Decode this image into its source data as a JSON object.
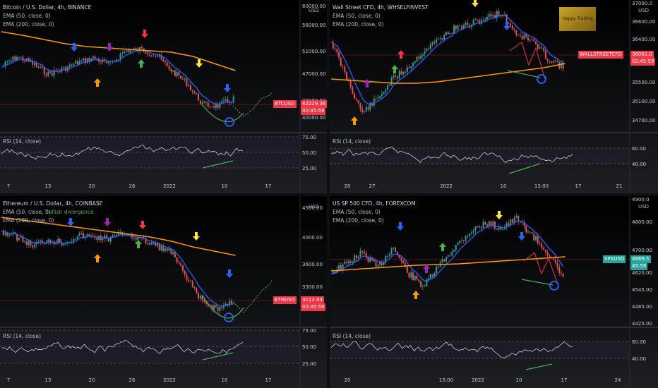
{
  "panels": [
    {
      "id": "btc",
      "title": "Bitcoin / U.S. Dollar, 4h, BINANCE",
      "ema50_label": "EMA (50, close, 0)",
      "ema200_label": "EMA (200, close, 0)",
      "rsi_label": "RSI (14, close)",
      "price_unit": "USD",
      "price_ticks": [
        "60000.00",
        "56000.00",
        "51000.00",
        "47000.00",
        "42000.00",
        "40000.00"
      ],
      "rsi_ticks": [
        "75.00",
        "50.00",
        "25.00"
      ],
      "x_ticks": [
        "7",
        "13",
        "20",
        "26",
        "2022",
        "10",
        "17"
      ],
      "symbol_tag": "BTCUSD",
      "last_price": "42229.36",
      "countdown": "02:45:59",
      "tag_color": "#f23645"
    },
    {
      "id": "us30",
      "title": "Wall Street CFD, 4h, WHSELFINVEST",
      "ema50_label": "EMA (50, close, 0)",
      "ema200_label": "EMA (200, close, 0)",
      "rsi_label": "RSI (14, close)",
      "price_unit": "USD",
      "price_ticks": [
        "37000.0",
        "36600.00",
        "36400.00",
        "35500.00",
        "35100.00",
        "34700.00"
      ],
      "rsi_ticks": [
        "60.00",
        "40.00"
      ],
      "x_ticks": [
        "20",
        "27",
        "2022",
        "10",
        "13:00",
        "17",
        "21"
      ],
      "symbol_tag": "WALLSTREETCFD",
      "last_price": "36061.0",
      "countdown": "02:45:59",
      "tag_color": "#f23645",
      "logo_text": "Happy Trading"
    },
    {
      "id": "eth",
      "title": "Ethereum / U.S. Dollar, 4h, COINBASE",
      "ema50_label": "EMA (50, close, 0)",
      "ema200_label": "EMA (200, close, 0)",
      "rsi_label": "RSI (14, close)",
      "annotation": "bullish divergence",
      "price_unit": "USD",
      "price_ticks": [
        "4500.00",
        "4000.00",
        "3600.00",
        "3300.00",
        "3000.00"
      ],
      "rsi_ticks": [
        "75.00",
        "50.00",
        "25.00"
      ],
      "x_ticks": [
        "7",
        "13",
        "20",
        "26",
        "2022",
        "10",
        "17"
      ],
      "symbol_tag": "ETHUSD",
      "last_price": "3112.44",
      "countdown": "02:45:59",
      "tag_color": "#f23645"
    },
    {
      "id": "spx",
      "title": "US SP 500 CFD, 4h, FOREXCOM",
      "ema50_label": "EMA (50, close, 0)",
      "ema200_label": "EMA (200, close, 0)",
      "rsi_label": "RSI (14, close)",
      "price_unit": "USD",
      "price_ticks": [
        "4900.0",
        "4800.00",
        "4700.00",
        "4620.00",
        "4545.00",
        "4485.00",
        "4425.00"
      ],
      "rsi_ticks": [
        "60.00",
        "40.00"
      ],
      "x_ticks": [
        "20",
        "15:00",
        "2022",
        "10",
        "17",
        "24"
      ],
      "symbol_tag": "SPXUSD",
      "last_price": "4669.5",
      "countdown": "45:59",
      "tag_color": "#26a69a"
    }
  ],
  "colors": {
    "up": "#26a69a",
    "down": "#ef5350",
    "ema50": "#2962ff",
    "ema200": "#ff9800",
    "rsi": "#e0e0e0",
    "arrow_blue": "#2962ff",
    "arrow_red": "#f23645",
    "arrow_green": "#4caf50",
    "arrow_orange": "#ff9800",
    "arrow_purple": "#9c27b0",
    "arrow_yellow": "#ffeb3b",
    "projection_green": "#4caf50",
    "projection_red": "#f23645",
    "divergence": "#4caf50",
    "target_circle": "#2962ff"
  }
}
